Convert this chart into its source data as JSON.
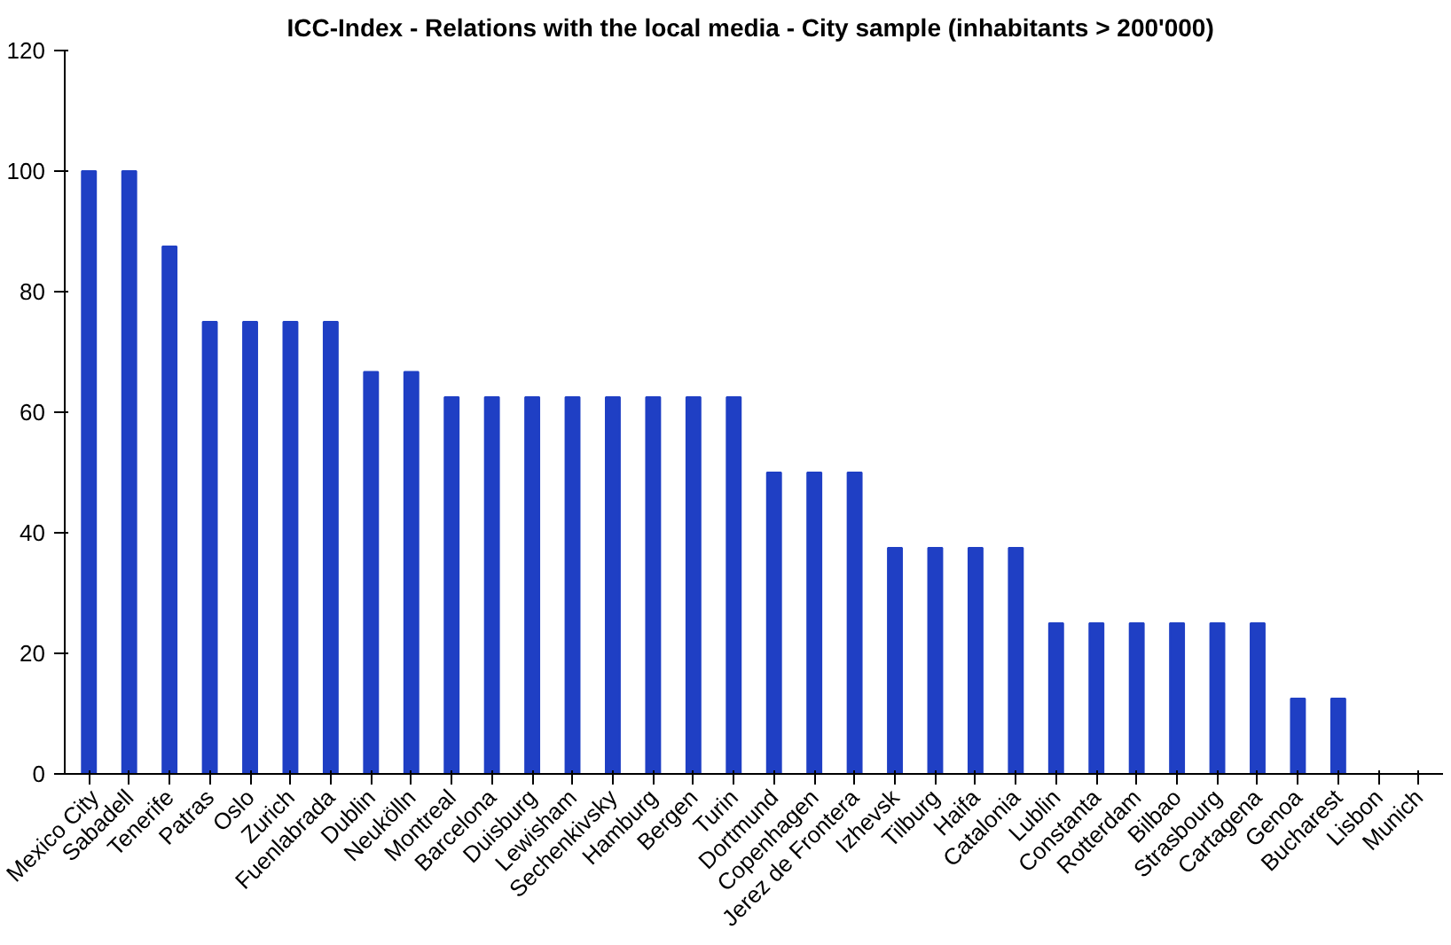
{
  "chart_data": {
    "type": "bar",
    "title": "ICC-Index - Relations with the  local media - City sample (inhabitants > 200'000)",
    "categories": [
      "Mexico City",
      "Sabadell",
      "Tenerife",
      "Patras",
      "Oslo",
      "Zurich",
      "Fuenlabrada",
      "Dublin",
      "Neukölln",
      "Montreal",
      "Barcelona",
      "Duisburg",
      "Lewisham",
      "Sechenkivsky",
      "Hamburg",
      "Bergen",
      "Turin",
      "Dortmund",
      "Copenhagen",
      "Jerez de Frontera",
      "Izhevsk",
      "Tilburg",
      "Haifa",
      "Catalonia",
      "Lublin",
      "Constanta",
      "Rotterdam",
      "Bilbao",
      "Strasbourg",
      "Cartagena",
      "Genoa",
      "Bucharest",
      "Lisbon",
      "Munich"
    ],
    "values": [
      100,
      100,
      87.5,
      75,
      75,
      75,
      75,
      66.7,
      66.7,
      62.5,
      62.5,
      62.5,
      62.5,
      62.5,
      62.5,
      62.5,
      62.5,
      50,
      50,
      50,
      37.5,
      37.5,
      37.5,
      37.5,
      25,
      25,
      25,
      25,
      25,
      25,
      12.5,
      12.5,
      0,
      0
    ],
    "color": "#1f3fc4",
    "ylim": [
      0,
      120
    ],
    "yticks": [
      0,
      20,
      40,
      60,
      80,
      100,
      120
    ],
    "grid": false
  }
}
